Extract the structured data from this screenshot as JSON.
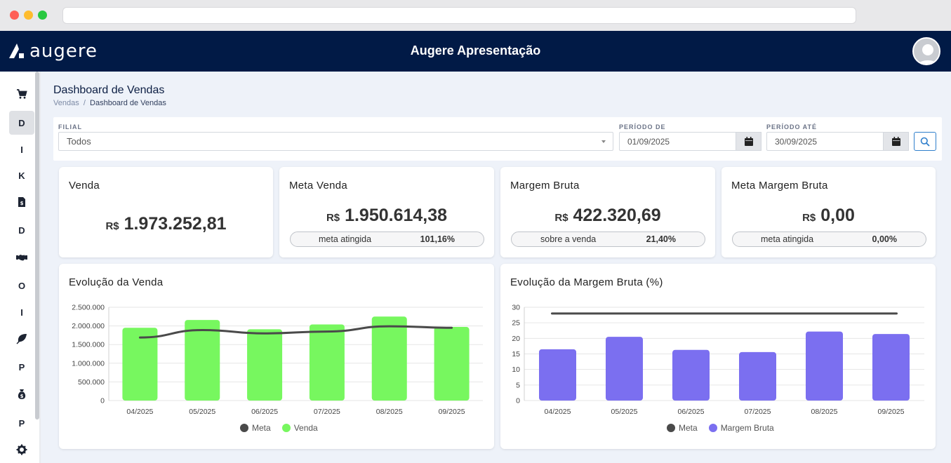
{
  "header": {
    "logo_text": "augere",
    "title": "Augere Apresentação"
  },
  "sidebar": {
    "items": [
      {
        "icon": "cart-icon",
        "label": ""
      },
      {
        "label": "D"
      },
      {
        "label": "I"
      },
      {
        "label": "K"
      },
      {
        "icon": "invoice-icon",
        "label": ""
      },
      {
        "label": "D"
      },
      {
        "icon": "handshake-icon",
        "label": ""
      },
      {
        "label": "O"
      },
      {
        "label": "I"
      },
      {
        "icon": "leaf-icon",
        "label": ""
      },
      {
        "label": "P"
      },
      {
        "icon": "money-bag-icon",
        "label": ""
      },
      {
        "label": "P"
      },
      {
        "icon": "gear-icon",
        "label": ""
      }
    ]
  },
  "page": {
    "title": "Dashboard de Vendas",
    "breadcrumb": {
      "parent": "Vendas",
      "separator": "/",
      "current": "Dashboard de Vendas"
    }
  },
  "filters": {
    "filial_label": "FILIAL",
    "filial_value": "Todos",
    "periodo_de_label": "PERÍODO DE",
    "periodo_de_value": "01/09/2025",
    "periodo_ate_label": "PERÍODO ATÉ",
    "periodo_ate_value": "30/09/2025"
  },
  "kpis": {
    "venda": {
      "title": "Venda",
      "currency": "R$",
      "value": "1.973.252,81"
    },
    "meta_venda": {
      "title": "Meta Venda",
      "currency": "R$",
      "value": "1.950.614,38",
      "pill_label": "meta atingida",
      "pill_value": "101,16%"
    },
    "margem_bruta": {
      "title": "Margem Bruta",
      "currency": "R$",
      "value": "422.320,69",
      "pill_label": "sobre a venda",
      "pill_value": "21,40%"
    },
    "meta_margem": {
      "title": "Meta Margem Bruta",
      "currency": "R$",
      "value": "0,00",
      "pill_label": "meta atingida",
      "pill_value": "0,00%"
    }
  },
  "colors": {
    "venda": "#77f75f",
    "margem": "#7b6ff0",
    "meta": "#4a4a4a",
    "header": "#011a46"
  },
  "chart_data": [
    {
      "type": "bar",
      "title": "Evolução da Venda",
      "categories": [
        "04/2025",
        "05/2025",
        "06/2025",
        "07/2025",
        "08/2025",
        "09/2025"
      ],
      "series": [
        {
          "name": "Venda",
          "type": "bar",
          "values": [
            1950000,
            2160000,
            1910000,
            2040000,
            2250000,
            1973253
          ]
        },
        {
          "name": "Meta",
          "type": "line",
          "values": [
            1690000,
            1890000,
            1800000,
            1850000,
            1990000,
            1950614
          ]
        }
      ],
      "yticks": [
        "2.500.000",
        "2.000.000",
        "1.500.000",
        "1.000.000",
        "500.000",
        "0"
      ],
      "ylim": [
        0,
        2500000
      ],
      "grid": true,
      "legend": "bottom"
    },
    {
      "type": "bar",
      "title": "Evolução da Margem Bruta (%)",
      "categories": [
        "04/2025",
        "05/2025",
        "06/2025",
        "07/2025",
        "08/2025",
        "09/2025"
      ],
      "series": [
        {
          "name": "Margem Bruta",
          "type": "bar",
          "values": [
            16.5,
            20.5,
            16.3,
            15.6,
            22.2,
            21.4
          ]
        },
        {
          "name": "Meta",
          "type": "line",
          "values": [
            28,
            28,
            28,
            28,
            28,
            28
          ]
        }
      ],
      "yticks": [
        "30",
        "25",
        "20",
        "15",
        "10",
        "5",
        "0"
      ],
      "ylim": [
        0,
        30
      ],
      "grid": true,
      "legend": "bottom"
    }
  ]
}
